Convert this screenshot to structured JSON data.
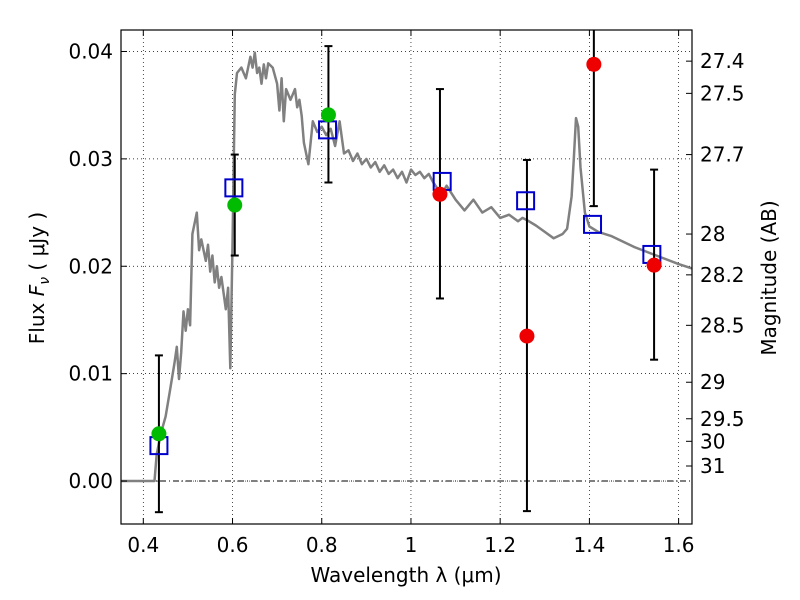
{
  "chart_data": {
    "type": "scatter",
    "title": "",
    "xlabel": "Wavelength  λ (μm)",
    "ylabel": "Flux  F_ν  ( μJy )",
    "ylabel_parts": {
      "pre": "Flux  ",
      "var": "F",
      "sub": "ν",
      "post": "  ( μJy )"
    },
    "y2label": "Magnitude (AB)",
    "xlim": [
      0.35,
      1.63
    ],
    "ylim": [
      -0.004,
      0.042
    ],
    "grid": true,
    "x_ticks": [
      0.4,
      0.6,
      0.8,
      1.0,
      1.2,
      1.4,
      1.6
    ],
    "x_tick_labels": [
      "0.4",
      "0.6",
      "0.8",
      "1",
      "1.2",
      "1.4",
      "1.6"
    ],
    "y_ticks": [
      0.0,
      0.01,
      0.02,
      0.03,
      0.04
    ],
    "y_tick_labels": [
      "0.00",
      "0.01",
      "0.02",
      "0.03",
      "0.04"
    ],
    "y2_ticks": [
      {
        "label": "27.4",
        "flux": 0.0391
      },
      {
        "label": "27.5",
        "flux": 0.0361
      },
      {
        "label": "27.7",
        "flux": 0.0304
      },
      {
        "label": "28",
        "flux": 0.023
      },
      {
        "label": "28.2",
        "flux": 0.0192
      },
      {
        "label": "28.5",
        "flux": 0.0145
      },
      {
        "label": "29",
        "flux": 0.0092
      },
      {
        "label": "29.5",
        "flux": 0.0058
      },
      {
        "label": "30",
        "flux": 0.0037
      },
      {
        "label": "31",
        "flux": 0.0014
      }
    ],
    "colors": {
      "model": "#808080",
      "observed": "#000000",
      "green": "#00bb00",
      "red": "#ee0000",
      "model_band": "#0000cc"
    },
    "model_spectrum": {
      "name": "model SED",
      "x": [
        0.35,
        0.425,
        0.43,
        0.44,
        0.45,
        0.46,
        0.47,
        0.475,
        0.48,
        0.485,
        0.49,
        0.495,
        0.5,
        0.505,
        0.51,
        0.52,
        0.525,
        0.53,
        0.54,
        0.545,
        0.55,
        0.555,
        0.56,
        0.565,
        0.57,
        0.575,
        0.58,
        0.585,
        0.59,
        0.595,
        0.6,
        0.605,
        0.61,
        0.62,
        0.63,
        0.64,
        0.645,
        0.65,
        0.655,
        0.66,
        0.665,
        0.67,
        0.675,
        0.68,
        0.69,
        0.7,
        0.705,
        0.71,
        0.715,
        0.72,
        0.73,
        0.74,
        0.745,
        0.75,
        0.755,
        0.76,
        0.77,
        0.78,
        0.79,
        0.8,
        0.81,
        0.82,
        0.83,
        0.84,
        0.85,
        0.86,
        0.87,
        0.88,
        0.89,
        0.9,
        0.91,
        0.92,
        0.93,
        0.94,
        0.95,
        0.96,
        0.97,
        0.98,
        0.99,
        1.0,
        1.01,
        1.02,
        1.03,
        1.04,
        1.05,
        1.06,
        1.07,
        1.08,
        1.1,
        1.12,
        1.14,
        1.16,
        1.18,
        1.2,
        1.22,
        1.24,
        1.25,
        1.26,
        1.28,
        1.3,
        1.32,
        1.34,
        1.35,
        1.36,
        1.365,
        1.37,
        1.375,
        1.38,
        1.39,
        1.4,
        1.42,
        1.45,
        1.5,
        1.55,
        1.6,
        1.63
      ],
      "y": [
        0.0,
        0.0,
        0.0025,
        0.0045,
        0.006,
        0.0085,
        0.011,
        0.0125,
        0.0095,
        0.012,
        0.0158,
        0.014,
        0.016,
        0.0145,
        0.023,
        0.025,
        0.0215,
        0.0225,
        0.0205,
        0.022,
        0.0195,
        0.021,
        0.0185,
        0.02,
        0.018,
        0.019,
        0.0175,
        0.016,
        0.018,
        0.0105,
        0.022,
        0.036,
        0.038,
        0.0385,
        0.0375,
        0.0395,
        0.0385,
        0.0399,
        0.038,
        0.0385,
        0.037,
        0.0388,
        0.0375,
        0.0389,
        0.0385,
        0.037,
        0.0345,
        0.0375,
        0.0335,
        0.0365,
        0.0355,
        0.0365,
        0.0348,
        0.0355,
        0.034,
        0.0315,
        0.0295,
        0.0335,
        0.0325,
        0.033,
        0.0322,
        0.0328,
        0.0312,
        0.0335,
        0.0305,
        0.0308,
        0.0298,
        0.0305,
        0.0295,
        0.03,
        0.0292,
        0.0297,
        0.0288,
        0.0294,
        0.0286,
        0.029,
        0.0282,
        0.0288,
        0.0278,
        0.029,
        0.0285,
        0.0288,
        0.0282,
        0.0286,
        0.0278,
        0.0272,
        0.0268,
        0.0275,
        0.0262,
        0.0252,
        0.0262,
        0.025,
        0.0255,
        0.0245,
        0.0248,
        0.0242,
        0.0245,
        0.0243,
        0.0238,
        0.0232,
        0.0226,
        0.023,
        0.0235,
        0.0265,
        0.03,
        0.0338,
        0.033,
        0.0292,
        0.025,
        0.0237,
        0.0232,
        0.0228,
        0.0218,
        0.021,
        0.0202,
        0.0198
      ]
    },
    "observed": [
      {
        "name": "obs-1",
        "x": 0.435,
        "low": -0.0029,
        "high": 0.0117,
        "color": "green",
        "value": 0.0044
      },
      {
        "name": "obs-2",
        "x": 0.605,
        "low": 0.021,
        "high": 0.0304,
        "color": "green",
        "value": 0.0257
      },
      {
        "name": "obs-3",
        "x": 0.815,
        "low": 0.0278,
        "high": 0.0405,
        "color": "green",
        "value": 0.0341
      },
      {
        "name": "obs-4",
        "x": 1.065,
        "low": 0.017,
        "high": 0.0365,
        "color": "red",
        "value": 0.0267
      },
      {
        "name": "obs-5",
        "x": 1.26,
        "low": -0.0028,
        "high": 0.0299,
        "color": "red",
        "value": 0.0135
      },
      {
        "name": "obs-6",
        "x": 1.41,
        "low": 0.0256,
        "high": 0.0425,
        "color": "red",
        "value": 0.0388
      },
      {
        "name": "obs-7",
        "x": 1.545,
        "low": 0.0113,
        "high": 0.029,
        "color": "red",
        "value": 0.0201
      }
    ],
    "model_band_flux": [
      {
        "x": 0.435,
        "y": 0.0033
      },
      {
        "x": 0.603,
        "y": 0.0273
      },
      {
        "x": 0.813,
        "y": 0.0327
      },
      {
        "x": 1.07,
        "y": 0.0279
      },
      {
        "x": 1.257,
        "y": 0.0261
      },
      {
        "x": 1.407,
        "y": 0.0239
      },
      {
        "x": 1.54,
        "y": 0.0211
      }
    ]
  }
}
